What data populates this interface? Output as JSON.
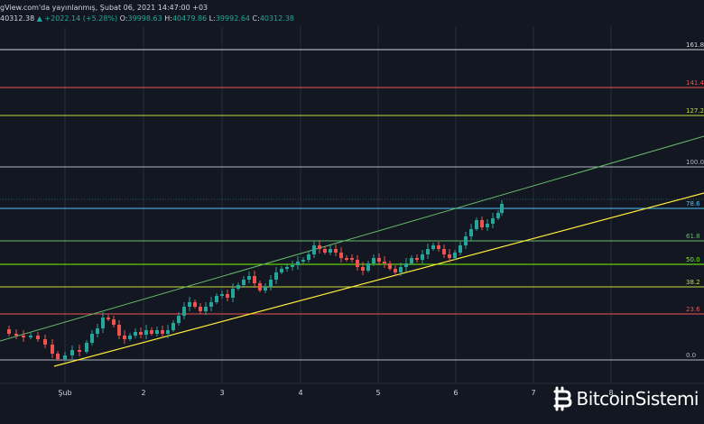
{
  "header": {
    "published_line": "gView.com'da yayınlanmış, Şubat 06, 2021 14:47:00 +03",
    "last_price": "40312.38",
    "change": "+2022.14 (+5.28%)",
    "open_label": "O:",
    "open_value": "39998.63",
    "high_label": "H:",
    "high_value": "40479.86",
    "low_label": "L:",
    "low_value": "39992.64",
    "close_label": "C:",
    "close_value": "40312.38"
  },
  "fib_levels": [
    {
      "label": "161.8",
      "color": "#d1d4dc"
    },
    {
      "label": "141.4",
      "color": "#ef5350"
    },
    {
      "label": "127.2",
      "color": "#cddc39"
    },
    {
      "label": "100.0",
      "color": "#b2b5be"
    },
    {
      "label": "78.6",
      "color": "#4fc3f7"
    },
    {
      "label": "61.8",
      "color": "#66bb6a"
    },
    {
      "label": "50.0",
      "color": "#76ff03"
    },
    {
      "label": "38.2",
      "color": "#cddc39"
    },
    {
      "label": "23.6",
      "color": "#ef5350"
    },
    {
      "label": "0.0",
      "color": "#b2b5be"
    }
  ],
  "time_axis": [
    "Şub",
    "2",
    "3",
    "4",
    "5",
    "6",
    "7",
    "8"
  ],
  "colors": {
    "bull": "#26a69a",
    "bear": "#ef5350",
    "upper_channel": "#66bb6a",
    "lower_channel": "#ffeb3b",
    "grid": "#2a2e39"
  },
  "logo": {
    "icon": "bitcoin-icon",
    "text": "BitcoinSistemi"
  }
}
